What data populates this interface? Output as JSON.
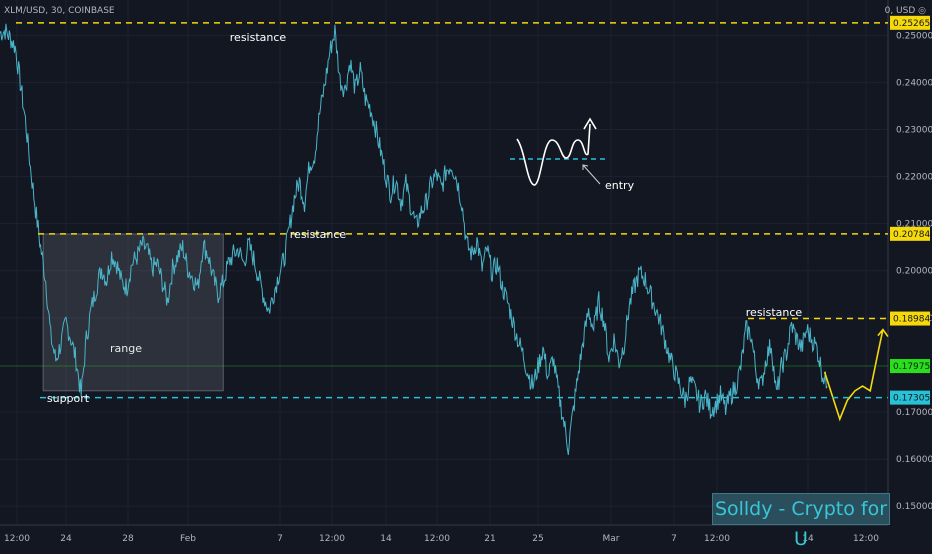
{
  "header": {
    "symbol": "XLM/USD, 30, COINBASE",
    "unit": "0, USD ◎"
  },
  "watermark": "Solldy - Crypto for U",
  "colors": {
    "background": "#131722",
    "price_line": "#4ab4c8",
    "resistance": "#f5d90a",
    "support": "#27c2d6",
    "current_tag": "#28e01a",
    "annotation": "#ffffff",
    "forecast": "#f5d90a"
  },
  "chart_data": {
    "type": "line",
    "title": "XLM/USD, 30, COINBASE",
    "x_tick_labels": [
      "12:00",
      "24",
      "28",
      "Feb",
      "7",
      "12:00",
      "14",
      "12:00",
      "21",
      "25",
      "Mar",
      "7",
      "12:00",
      "14",
      "12:00"
    ],
    "y_tick_labels": [
      "0.250000",
      "0.240000",
      "0.230000",
      "0.220000",
      "0.210000",
      "0.200000",
      "0.190000",
      "0.170000",
      "0.160000",
      "0.150000"
    ],
    "ylim": [
      0.146,
      0.2575
    ],
    "grid": true,
    "series": [
      {
        "price_path": [
          [
            0,
            0.2505
          ],
          [
            0.02,
            0.251
          ],
          [
            0.04,
            0.2495
          ],
          [
            0.06,
            0.2475
          ],
          [
            0.08,
            0.24
          ],
          [
            0.1,
            0.232
          ],
          [
            0.12,
            0.222
          ],
          [
            0.14,
            0.213
          ],
          [
            0.16,
            0.205
          ],
          [
            0.18,
            0.198
          ],
          [
            0.2,
            0.186
          ],
          [
            0.22,
            0.181
          ],
          [
            0.24,
            0.1845
          ],
          [
            0.26,
            0.189
          ],
          [
            0.28,
            0.1855
          ],
          [
            0.3,
            0.181
          ],
          [
            0.32,
            0.1735
          ],
          [
            0.34,
            0.1855
          ],
          [
            0.36,
            0.192
          ],
          [
            0.38,
            0.1965
          ],
          [
            0.4,
            0.2005
          ],
          [
            0.42,
            0.198
          ],
          [
            0.44,
            0.2035
          ],
          [
            0.46,
            0.2015
          ],
          [
            0.48,
            0.1975
          ],
          [
            0.5,
            0.1965
          ],
          [
            0.52,
            0.2015
          ],
          [
            0.54,
            0.203
          ],
          [
            0.56,
            0.2055
          ],
          [
            0.58,
            0.2045
          ],
          [
            0.6,
            0.2005
          ],
          [
            0.62,
            0.2015
          ],
          [
            0.64,
            0.1975
          ],
          [
            0.66,
            0.1935
          ],
          [
            0.68,
            0.2005
          ],
          [
            0.7,
            0.203
          ],
          [
            0.72,
            0.205
          ],
          [
            0.74,
            0.2005
          ],
          [
            0.76,
            0.1985
          ],
          [
            0.78,
            0.1965
          ],
          [
            0.8,
            0.2055
          ],
          [
            0.82,
            0.2035
          ],
          [
            0.84,
            0.1985
          ],
          [
            0.86,
            0.195
          ],
          [
            0.88,
            0.1975
          ],
          [
            0.9,
            0.2015
          ],
          [
            0.92,
            0.2035
          ],
          [
            0.94,
            0.2045
          ],
          [
            0.96,
            0.2015
          ],
          [
            0.98,
            0.2055
          ],
          [
            1.0,
            0.2025
          ],
          [
            1.02,
            0.1985
          ],
          [
            1.04,
            0.1945
          ],
          [
            1.06,
            0.1915
          ],
          [
            1.08,
            0.1955
          ],
          [
            1.1,
            0.1995
          ],
          [
            1.12,
            0.2025
          ],
          [
            1.14,
            0.209
          ],
          [
            1.16,
            0.2155
          ],
          [
            1.18,
            0.219
          ],
          [
            1.2,
            0.2145
          ],
          [
            1.22,
            0.2225
          ],
          [
            1.24,
            0.2245
          ],
          [
            1.26,
            0.2335
          ],
          [
            1.28,
            0.2395
          ],
          [
            1.3,
            0.2465
          ],
          [
            1.32,
            0.251
          ],
          [
            1.34,
            0.2405
          ],
          [
            1.36,
            0.2385
          ],
          [
            1.38,
            0.2445
          ],
          [
            1.4,
            0.2385
          ],
          [
            1.42,
            0.2425
          ],
          [
            1.44,
            0.2365
          ],
          [
            1.46,
            0.2345
          ],
          [
            1.48,
            0.2305
          ],
          [
            1.5,
            0.2255
          ],
          [
            1.52,
            0.2205
          ],
          [
            1.54,
            0.2165
          ],
          [
            1.56,
            0.2195
          ],
          [
            1.58,
            0.2145
          ],
          [
            1.6,
            0.2185
          ],
          [
            1.62,
            0.2135
          ],
          [
            1.64,
            0.2095
          ],
          [
            1.66,
            0.2125
          ],
          [
            1.68,
            0.2145
          ],
          [
            1.7,
            0.2185
          ],
          [
            1.72,
            0.2205
          ],
          [
            1.74,
            0.2175
          ],
          [
            1.76,
            0.2215
          ],
          [
            1.78,
            0.2225
          ],
          [
            1.8,
            0.2195
          ],
          [
            1.82,
            0.2145
          ],
          [
            1.84,
            0.2055
          ],
          [
            1.86,
            0.2035
          ],
          [
            1.88,
            0.2065
          ],
          [
            1.9,
            0.2005
          ],
          [
            1.92,
            0.2045
          ],
          [
            1.94,
            0.1995
          ],
          [
            1.96,
            0.2015
          ],
          [
            1.98,
            0.1965
          ],
          [
            2.0,
            0.1935
          ],
          [
            2.02,
            0.1895
          ],
          [
            2.04,
            0.1855
          ],
          [
            2.06,
            0.1825
          ],
          [
            2.08,
            0.1785
          ],
          [
            2.1,
            0.1755
          ],
          [
            2.12,
            0.1795
          ],
          [
            2.14,
            0.1835
          ],
          [
            2.16,
            0.1775
          ],
          [
            2.18,
            0.1815
          ],
          [
            2.2,
            0.1745
          ],
          [
            2.22,
            0.1685
          ],
          [
            2.24,
            0.1625
          ],
          [
            2.26,
            0.1705
          ],
          [
            2.28,
            0.1785
          ],
          [
            2.3,
            0.1855
          ],
          [
            2.32,
            0.1915
          ],
          [
            2.34,
            0.1875
          ],
          [
            2.36,
            0.1935
          ],
          [
            2.38,
            0.1895
          ],
          [
            2.4,
            0.1815
          ],
          [
            2.42,
            0.1855
          ],
          [
            2.44,
            0.1805
          ],
          [
            2.46,
            0.1845
          ],
          [
            2.48,
            0.1925
          ],
          [
            2.5,
            0.1965
          ],
          [
            2.52,
            0.1995
          ],
          [
            2.54,
            0.1985
          ],
          [
            2.56,
            0.1955
          ],
          [
            2.58,
            0.1925
          ],
          [
            2.6,
            0.1895
          ],
          [
            2.62,
            0.1855
          ],
          [
            2.64,
            0.1815
          ],
          [
            2.66,
            0.1785
          ],
          [
            2.68,
            0.1755
          ],
          [
            2.7,
            0.1725
          ],
          [
            2.72,
            0.1765
          ],
          [
            2.74,
            0.1745
          ],
          [
            2.76,
            0.1715
          ],
          [
            2.78,
            0.1735
          ],
          [
            2.8,
            0.1705
          ],
          [
            2.82,
            0.1715
          ],
          [
            2.84,
            0.1735
          ],
          [
            2.86,
            0.1705
          ],
          [
            2.88,
            0.1735
          ],
          [
            2.9,
            0.1755
          ],
          [
            2.92,
            0.1795
          ],
          [
            2.94,
            0.1875
          ],
          [
            2.96,
            0.1865
          ],
          [
            2.98,
            0.1785
          ],
          [
            3.0,
            0.1755
          ],
          [
            3.02,
            0.1815
          ],
          [
            3.04,
            0.1845
          ],
          [
            3.06,
            0.1735
          ],
          [
            3.08,
            0.1795
          ],
          [
            3.1,
            0.1825
          ],
          [
            3.12,
            0.1885
          ],
          [
            3.14,
            0.1855
          ],
          [
            3.16,
            0.1835
          ],
          [
            3.18,
            0.1875
          ],
          [
            3.2,
            0.1855
          ],
          [
            3.22,
            0.1835
          ],
          [
            3.24,
            0.1785
          ],
          [
            3.26,
            0.1755
          ]
        ]
      },
      {
        "name": "forecast",
        "price_path": [
          [
            3.25,
            0.1785
          ],
          [
            3.28,
            0.1735
          ],
          [
            3.31,
            0.1685
          ],
          [
            3.34,
            0.1725
          ],
          [
            3.37,
            0.1745
          ],
          [
            3.4,
            0.1755
          ],
          [
            3.43,
            0.1745
          ],
          [
            3.46,
            0.1825
          ],
          [
            3.48,
            0.1875
          ]
        ]
      }
    ],
    "levels": [
      {
        "label": "resistance",
        "value": 0.252654,
        "tag": "0.252654",
        "style": "resistance"
      },
      {
        "label": "resistance",
        "value": 0.20784,
        "tag": "0.207840",
        "style": "resistance"
      },
      {
        "label": "resistance",
        "value": 0.189846,
        "tag": "0.189846",
        "style": "resistance"
      },
      {
        "label": "support",
        "value": 0.173053,
        "tag": "0.173053",
        "style": "support"
      }
    ],
    "current_price": {
      "value": 0.179759,
      "tag": "0.179759"
    },
    "range_box": {
      "label": "range",
      "x_from": 0.17,
      "x_to": 0.88,
      "y_from": 0.2078,
      "y_to": 0.1745
    },
    "annotations": [
      {
        "text": "entry"
      }
    ]
  }
}
